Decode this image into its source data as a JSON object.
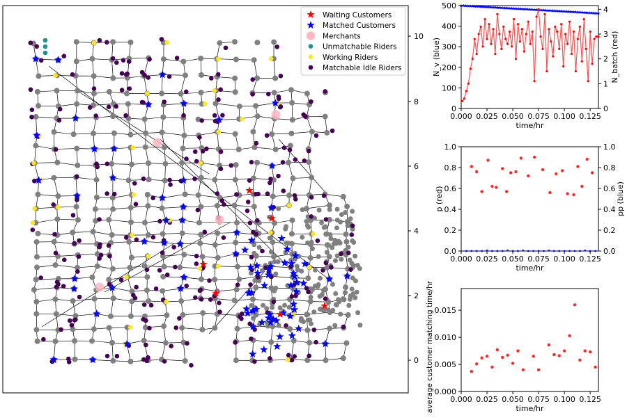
{
  "chart_data": [
    {
      "type": "scatter",
      "subtype": "network-map",
      "y_right_ticks": [
        "0",
        "2",
        "4",
        "6",
        "8",
        "10"
      ],
      "legend": {
        "placement": "top-right",
        "entries": [
          {
            "label": "Waiting Customers",
            "marker": "star",
            "color": "#ff0000"
          },
          {
            "label": "Matched Customers",
            "marker": "star",
            "color": "#0000ff"
          },
          {
            "label": "Merchants",
            "marker": "circle",
            "color": "#ffb6c1"
          },
          {
            "label": "Unmatchable Riders",
            "marker": "circle",
            "color": "#21918c"
          },
          {
            "label": "Working Riders",
            "marker": "circle",
            "color": "#fde725"
          },
          {
            "label": "Matchable Idle Riders",
            "marker": "circle",
            "color": "#440154"
          }
        ]
      }
    },
    {
      "type": "line",
      "xlabel": "time/hr",
      "ylabel_left": "N_v (blue)",
      "ylabel_right": "N_batch (red)",
      "xlim": [
        0,
        0.133
      ],
      "ylim_left": [
        0,
        500
      ],
      "ylim_right": [
        0,
        4.15
      ],
      "xticks": [
        "0.000",
        "0.025",
        "0.050",
        "0.075",
        "0.100",
        "0.125"
      ],
      "yticks_left": [
        "0",
        "100",
        "200",
        "300",
        "400",
        "500"
      ],
      "yticks_right": [
        "0",
        "1",
        "2",
        "3",
        "4"
      ],
      "series": [
        {
          "axis": "left",
          "color": "#0000ff",
          "x": [
            0,
            0.133
          ],
          "values": [
            500,
            462
          ]
        },
        {
          "axis": "right",
          "color": "#ff0000",
          "x": [
            0.001,
            0.003,
            0.005,
            0.007,
            0.009,
            0.011,
            0.013,
            0.015,
            0.017,
            0.019,
            0.021,
            0.023,
            0.025,
            0.027,
            0.029,
            0.031,
            0.033,
            0.035,
            0.037,
            0.039,
            0.041,
            0.043,
            0.045,
            0.047,
            0.049,
            0.051,
            0.053,
            0.055,
            0.057,
            0.059,
            0.061,
            0.063,
            0.065,
            0.067,
            0.069,
            0.071,
            0.073,
            0.075,
            0.077,
            0.079,
            0.081,
            0.083,
            0.085,
            0.087,
            0.089,
            0.091,
            0.093,
            0.095,
            0.097,
            0.099,
            0.101,
            0.103,
            0.105,
            0.107,
            0.109,
            0.111,
            0.113,
            0.115,
            0.117,
            0.119,
            0.121,
            0.123,
            0.125,
            0.127,
            0.129,
            0.131,
            0.133
          ],
          "values": [
            0.3,
            0.4,
            0.7,
            1.0,
            1.6,
            2.0,
            2.8,
            2.2,
            3.0,
            3.3,
            2.5,
            3.6,
            2.8,
            3.4,
            2.6,
            3.2,
            2.2,
            3.8,
            3.0,
            2.4,
            3.3,
            2.8,
            2.6,
            3.1,
            2.5,
            3.6,
            2.0,
            3.4,
            2.7,
            3.2,
            2.3,
            3.0,
            3.5,
            2.6,
            3.1,
            1.1,
            3.7,
            4.0,
            2.9,
            2.4,
            3.8,
            1.5,
            3.2,
            2.7,
            2.1,
            3.3,
            3.1,
            2.4,
            3.4,
            1.7,
            3.0,
            2.6,
            3.5,
            2.2,
            3.1,
            1.5,
            2.8,
            3.3,
            1.9,
            3.6,
            2.4,
            1.1,
            3.1,
            1.8,
            2.8,
            2.9,
            2.9
          ]
        }
      ]
    },
    {
      "type": "scatter",
      "xlabel": "time/hr",
      "ylabel_left": "p (red)",
      "ylabel_right": "pp (blue)",
      "xlim": [
        0,
        0.133
      ],
      "ylim": [
        0,
        1
      ],
      "xticks": [
        "0.000",
        "0.025",
        "0.050",
        "0.075",
        "0.100",
        "0.125"
      ],
      "yticks": [
        "0.0",
        "0.2",
        "0.4",
        "0.6",
        "0.8",
        "1.0"
      ],
      "series": [
        {
          "axis": "left",
          "color": "#ff0000",
          "x": [
            0.01,
            0.015,
            0.02,
            0.026,
            0.03,
            0.034,
            0.04,
            0.044,
            0.048,
            0.053,
            0.058,
            0.065,
            0.071,
            0.079,
            0.086,
            0.092,
            0.098,
            0.103,
            0.109,
            0.113,
            0.117,
            0.122,
            0.127
          ],
          "values": [
            0.81,
            0.76,
            0.57,
            0.87,
            0.62,
            0.61,
            0.79,
            0.57,
            0.75,
            0.76,
            0.89,
            0.72,
            0.9,
            0.78,
            0.56,
            0.74,
            0.77,
            0.55,
            0.54,
            0.81,
            0.62,
            0.88,
            0.75
          ]
        },
        {
          "axis": "right",
          "color": "#0000ff",
          "x": [
            0.005,
            0.01,
            0.015,
            0.02,
            0.025,
            0.03,
            0.035,
            0.04,
            0.045,
            0.05,
            0.055,
            0.06,
            0.065,
            0.07,
            0.075,
            0.08,
            0.085,
            0.09,
            0.095,
            0.1,
            0.105,
            0.11,
            0.115,
            0.12,
            0.125,
            0.13
          ],
          "values": [
            0,
            0,
            0,
            0,
            0.005,
            0,
            0,
            0,
            0.005,
            0,
            0,
            0.005,
            0,
            0,
            0,
            0,
            0.005,
            0,
            0,
            0,
            0,
            0,
            0,
            0.005,
            0,
            0
          ]
        }
      ]
    },
    {
      "type": "scatter",
      "xlabel": "time/hr",
      "ylabel": "average customer matching time/hr",
      "xlim": [
        0,
        0.133
      ],
      "ylim": [
        0,
        0.019
      ],
      "xticks": [
        "0.000",
        "0.025",
        "0.050",
        "0.075",
        "0.100",
        "0.125"
      ],
      "yticks": [
        "0.000",
        "0.005",
        "0.010",
        "0.015"
      ],
      "series": [
        {
          "color": "#ff0000",
          "x": [
            0.01,
            0.015,
            0.02,
            0.025,
            0.03,
            0.035,
            0.04,
            0.045,
            0.05,
            0.055,
            0.06,
            0.07,
            0.075,
            0.085,
            0.09,
            0.095,
            0.1,
            0.105,
            0.11,
            0.115,
            0.12,
            0.125,
            0.13
          ],
          "values": [
            0.0037,
            0.0051,
            0.0062,
            0.0065,
            0.0045,
            0.0077,
            0.0063,
            0.0067,
            0.0052,
            0.0075,
            0.004,
            0.0065,
            0.004,
            0.0086,
            0.0068,
            0.0066,
            0.0075,
            0.0103,
            0.016,
            0.0058,
            0.0075,
            0.0073,
            0.0045
          ]
        }
      ]
    }
  ]
}
